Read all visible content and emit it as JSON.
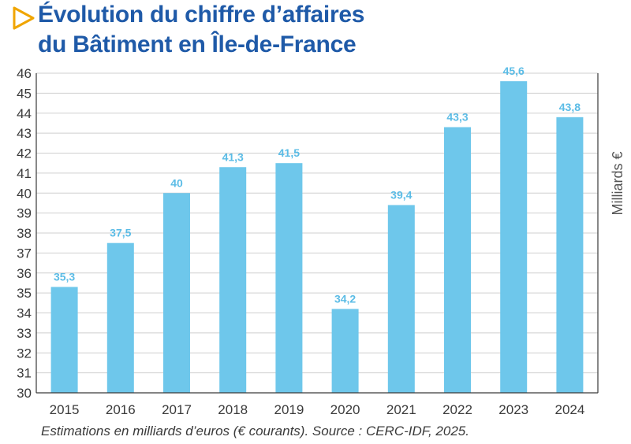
{
  "title": {
    "line1": "Évolution du chiffre d’affaires",
    "line2": "du Bâtiment en Île-de-France"
  },
  "caption": "Estimations en milliards d’euros (€ courants). Source : CERC-IDF, 2025.",
  "colors": {
    "title": "#1f5aa8",
    "arrow": "#f0a500",
    "bar": "#6ec7eb",
    "value_label": "#5bbce6",
    "axis": "#3a3a3a",
    "grid": "#cfcfcf"
  },
  "chart_data": {
    "type": "bar",
    "categories": [
      "2015",
      "2016",
      "2017",
      "2018",
      "2019",
      "2020",
      "2021",
      "2022",
      "2023",
      "2024"
    ],
    "values": [
      35.3,
      37.5,
      40,
      41.3,
      41.5,
      34.2,
      39.4,
      43.3,
      45.6,
      43.8
    ],
    "value_labels": [
      "35,3",
      "37,5",
      "40",
      "41,3",
      "41,5",
      "34,2",
      "39,4",
      "43,3",
      "45,6",
      "43,8"
    ],
    "ylabel": "Milliards €",
    "xlabel": "",
    "ylim": [
      30,
      46
    ],
    "yticks": [
      30,
      31,
      32,
      33,
      34,
      35,
      36,
      37,
      38,
      39,
      40,
      41,
      42,
      43,
      44,
      45,
      46
    ],
    "grid": true,
    "ylabel_position": "right"
  }
}
